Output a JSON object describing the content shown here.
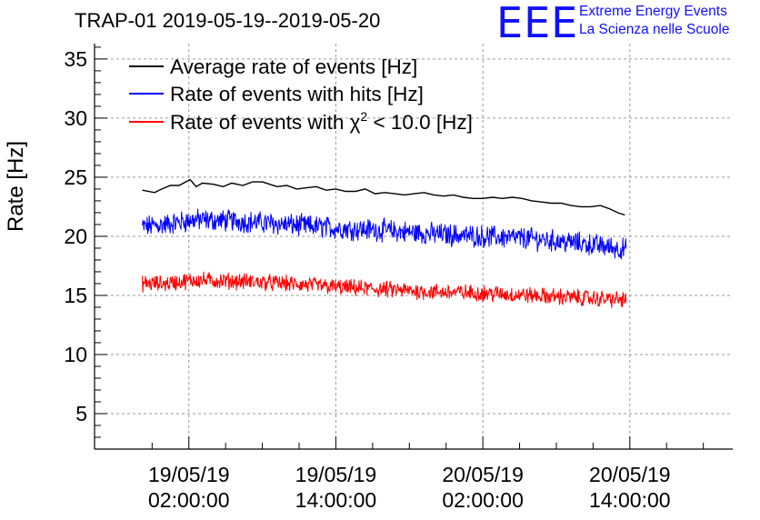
{
  "header": {
    "title": "TRAP-01 2019-05-19--2019-05-20",
    "logo_text": "EEE",
    "brand_line1": "Extreme Energy Events",
    "brand_line2": "La Scienza nelle Scuole"
  },
  "colors": {
    "average": "#000000",
    "hits": "#0000ff",
    "chi2": "#ff0000",
    "logo": "#1010ff",
    "grid": "#9a9a9a"
  },
  "chart_data": {
    "type": "line",
    "title": "TRAP-01 2019-05-19--2019-05-20",
    "ylabel": "Rate [Hz]",
    "xlabel": "",
    "x_unit": "hours since 19/05/19 00:00:00",
    "xlim": [
      -5.7,
      46.4
    ],
    "ylim": [
      2,
      36.3
    ],
    "yticks": [
      5,
      10,
      15,
      20,
      25,
      30,
      35
    ],
    "xticks": [
      {
        "x": 2,
        "date": "19/05/19",
        "time": "02:00:00"
      },
      {
        "x": 14,
        "date": "19/05/19",
        "time": "14:00:00"
      },
      {
        "x": 26,
        "date": "20/05/19",
        "time": "02:00:00"
      },
      {
        "x": 38,
        "date": "20/05/19",
        "time": "14:00:00"
      }
    ],
    "grid": true,
    "legend_position": "top-left",
    "series": [
      {
        "name": "Average rate of events [Hz]",
        "label_main": "Average rate of events [Hz]",
        "color": "#000000",
        "noise": 0,
        "x": [
          -1.8,
          -0.8,
          -0.2,
          0.5,
          1.2,
          2.1,
          2.6,
          3.1,
          4.0,
          4.8,
          5.5,
          6.4,
          7.2,
          8.0,
          8.6,
          9.2,
          10.0,
          10.8,
          11.6,
          12.4,
          13.2,
          14.0,
          14.8,
          15.6,
          16.4,
          17.2,
          18.0,
          18.8,
          19.6,
          20.4,
          21.2,
          22.0,
          22.8,
          23.6,
          24.4,
          25.2,
          26.0,
          26.8,
          27.6,
          28.4,
          29.2,
          30.0,
          30.8,
          31.6,
          32.4,
          33.2,
          34.0,
          34.8,
          35.6,
          36.4,
          37.0,
          37.6
        ],
        "values": [
          23.9,
          23.7,
          24.0,
          24.3,
          24.3,
          24.8,
          24.2,
          24.5,
          24.4,
          24.2,
          24.5,
          24.3,
          24.6,
          24.6,
          24.4,
          24.2,
          24.3,
          24.0,
          24.1,
          24.2,
          23.9,
          24.0,
          23.8,
          23.8,
          24.0,
          23.6,
          23.7,
          23.6,
          23.5,
          23.6,
          23.7,
          23.5,
          23.4,
          23.5,
          23.3,
          23.2,
          23.2,
          23.3,
          23.2,
          23.3,
          23.2,
          23.0,
          22.9,
          22.8,
          22.8,
          22.6,
          22.5,
          22.5,
          22.6,
          22.3,
          22.0,
          21.8
        ]
      },
      {
        "name": "Rate of events with hits [Hz]",
        "label_main": "Rate of events with hits [Hz]",
        "color": "#0000ff",
        "noise": 1.0,
        "x": [
          -1.8,
          0,
          2.5,
          6,
          10,
          14,
          18,
          22,
          26,
          30,
          34,
          37.7
        ],
        "values": [
          20.8,
          21.0,
          21.4,
          21.3,
          21.0,
          20.7,
          20.5,
          20.2,
          20.0,
          19.8,
          19.4,
          18.9
        ]
      },
      {
        "name": "Rate of events with χ2 < 10.0 [Hz]",
        "label_pre": "Rate of events with χ",
        "label_sup": "2",
        "label_post": " < 10.0 [Hz]",
        "color": "#ff0000",
        "noise": 0.75,
        "x": [
          -1.8,
          0,
          2.5,
          6,
          10,
          14,
          18,
          22,
          26,
          30,
          34,
          37.7
        ],
        "values": [
          16.0,
          16.0,
          16.3,
          16.2,
          16.0,
          15.7,
          15.5,
          15.3,
          15.2,
          15.0,
          14.8,
          14.6
        ]
      }
    ]
  }
}
